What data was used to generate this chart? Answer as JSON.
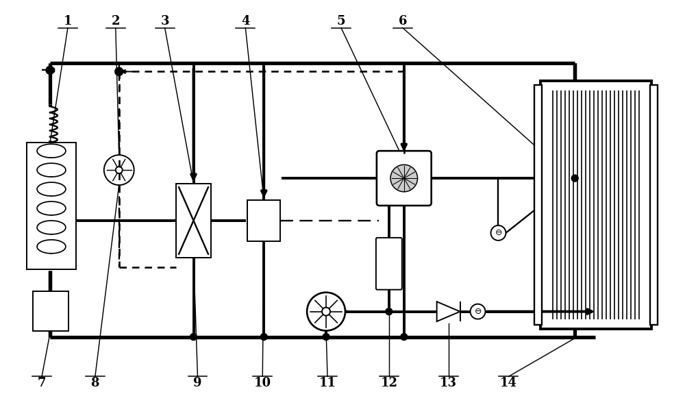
{
  "background": "#ffffff",
  "line_color": "#000000",
  "lw_main": 2.8,
  "lw_thin": 1.4,
  "labels_top": [
    "1",
    "2",
    "3",
    "4",
    "5",
    "6"
  ],
  "labels_top_x": [
    98,
    168,
    240,
    358,
    498,
    588
  ],
  "labels_top_y": [
    30,
    30,
    30,
    30,
    30,
    30
  ],
  "labels_bot": [
    "7",
    "8",
    "9",
    "10",
    "11",
    "12",
    "13",
    "14"
  ],
  "labels_bot_x": [
    60,
    138,
    288,
    383,
    478,
    568,
    655,
    743
  ],
  "labels_bot_y": [
    560,
    560,
    560,
    560,
    560,
    560,
    560,
    560
  ],
  "figsize": [
    10.0,
    5.91
  ],
  "dpi": 100
}
